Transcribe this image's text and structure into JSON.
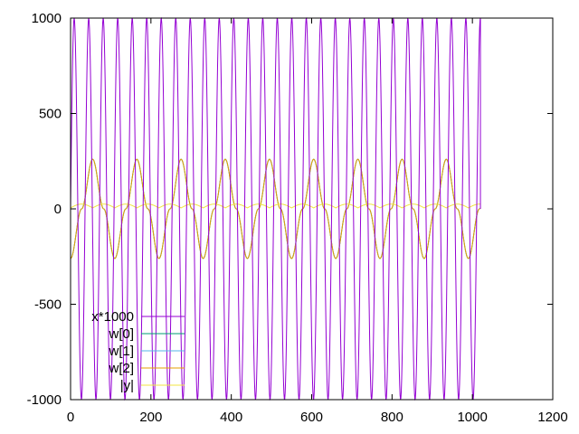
{
  "chart_data": {
    "type": "line",
    "title": "",
    "xlabel": "",
    "ylabel": "",
    "xlim": [
      0,
      1200
    ],
    "ylim": [
      -1000,
      1000
    ],
    "xticks": [
      0,
      200,
      400,
      600,
      800,
      1000,
      1200
    ],
    "yticks": [
      -1000,
      -500,
      0,
      500,
      1000
    ],
    "grid": false,
    "legend_position": "bottom-left",
    "x_samples": {
      "start": 0,
      "end": 1020,
      "count": 1021
    },
    "series": [
      {
        "name": "x*1000",
        "color": "#9400d3",
        "function": "sine",
        "amplitude": 1000,
        "period": 36.1,
        "phase_deg": 0,
        "offset": 0
      },
      {
        "name": "w[0]",
        "color": "#009e73",
        "function": "sine_sq_pos",
        "amplitude": 260,
        "period": 110,
        "phase_deg": -90,
        "offset": 0
      },
      {
        "name": "w[1]",
        "color": "#56b4e9",
        "function": "sine_sq_pos",
        "amplitude": 260,
        "period": 110,
        "phase_deg": -90,
        "offset": 0
      },
      {
        "name": "w[2]",
        "color": "#e69f00",
        "function": "sine_sq_pos",
        "amplitude": 260,
        "period": 110,
        "phase_deg": -90,
        "offset": 0
      },
      {
        "name": "|y|",
        "color": "#f0e442",
        "function": "abs_sine",
        "amplitude": 20,
        "period": 110,
        "phase_deg": 0,
        "offset": 5
      }
    ]
  }
}
